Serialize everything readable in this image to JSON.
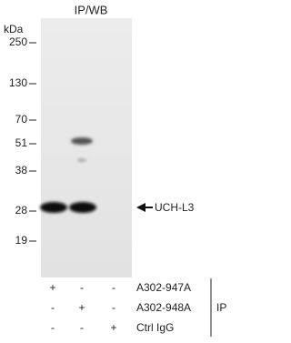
{
  "title": "IP/WB",
  "unit": "kDa",
  "markers": [
    "250",
    "130",
    "70",
    "51",
    "38",
    "28",
    "19"
  ],
  "band_label": "UCH-L3",
  "lanes": {
    "rows": [
      {
        "label": "A302-947A",
        "signs": [
          "+",
          "-",
          "-"
        ]
      },
      {
        "label": "A302-948A",
        "signs": [
          "-",
          "+",
          "-"
        ]
      },
      {
        "label": "Ctrl IgG",
        "signs": [
          "-",
          "-",
          "+"
        ]
      }
    ],
    "group_label": "IP"
  }
}
